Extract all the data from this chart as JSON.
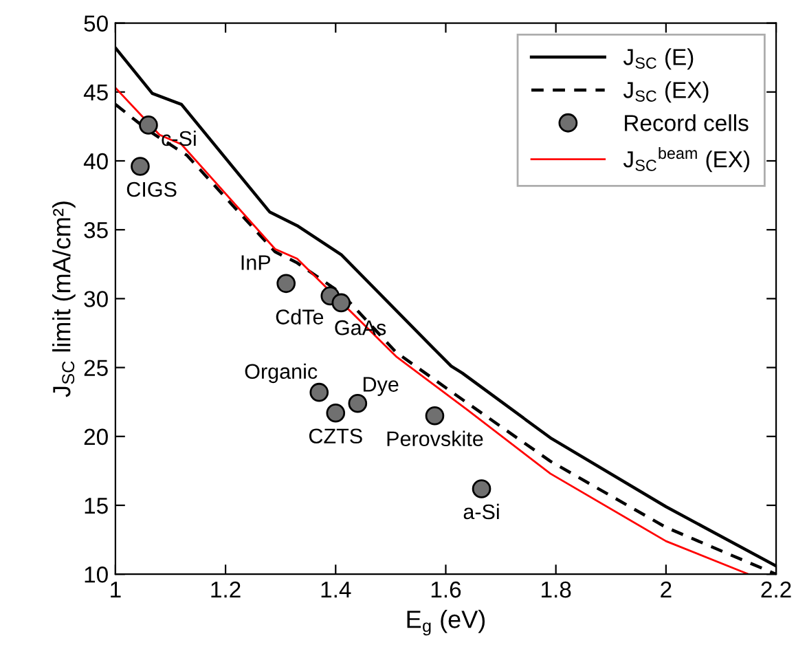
{
  "chart_data": {
    "type": "line",
    "xlabel": "E$_{g}$ (eV)",
    "ylabel": "J$_{SC}$ limit (mA/cm²)",
    "xlim": [
      1,
      2.2
    ],
    "xticks": [
      1,
      1.2,
      1.4,
      1.6,
      1.8,
      2,
      2.2
    ],
    "ylim": [
      10,
      50
    ],
    "yticks": [
      10,
      15,
      20,
      25,
      30,
      35,
      40,
      45,
      50
    ],
    "grid": false,
    "legend": "top right",
    "series": [
      {
        "name": "J$_{SC}$ (E)",
        "color": "#000000",
        "line_style": "solid",
        "x": [
          1.0,
          1.067,
          1.12,
          1.28,
          1.33,
          1.41,
          1.58,
          1.61,
          1.63,
          1.79,
          2.0,
          2.2
        ],
        "values": [
          48.2,
          44.9,
          44.1,
          36.3,
          35.3,
          33.2,
          26.3,
          25.1,
          24.6,
          19.9,
          14.9,
          10.6
        ]
      },
      {
        "name": "J$_{SC}$ (EX)",
        "color": "#000000",
        "line_style": "dashed",
        "x": [
          1.0,
          1.06,
          1.13,
          1.29,
          1.33,
          1.41,
          1.51,
          1.64,
          1.79,
          2.0,
          2.2
        ],
        "values": [
          44.1,
          42.2,
          40.4,
          33.4,
          32.6,
          30.4,
          26.1,
          22.4,
          18.2,
          13.4,
          10.0
        ]
      },
      {
        "name": "Record cells",
        "type": "scatter",
        "color": "#707070",
        "marker": "circle",
        "x": [
          1.06,
          1.045,
          1.31,
          1.39,
          1.41,
          1.37,
          1.4,
          1.44,
          1.58,
          1.665
        ],
        "values": [
          42.6,
          39.6,
          31.1,
          30.2,
          29.7,
          23.2,
          21.7,
          22.4,
          21.5,
          16.2
        ]
      },
      {
        "name": "J$_{SC}$$^{beam}$ (EX)",
        "color": "#ff0000",
        "line_style": "solid",
        "x": [
          1.0,
          1.08,
          1.12,
          1.29,
          1.33,
          1.51,
          1.64,
          1.79,
          2.0,
          2.15
        ],
        "values": [
          45.3,
          41.9,
          41.2,
          33.6,
          32.9,
          25.8,
          21.9,
          17.3,
          12.4,
          10.0
        ]
      }
    ],
    "annotations": [
      {
        "text": "c-Si",
        "x": 1.06,
        "y": 42.6
      },
      {
        "text": "CIGS",
        "x": 1.045,
        "y": 39.6
      },
      {
        "text": "InP",
        "x": 1.31,
        "y": 31.1
      },
      {
        "text": "CdTe",
        "x": 1.39,
        "y": 30.2
      },
      {
        "text": "GaAs",
        "x": 1.41,
        "y": 29.7
      },
      {
        "text": "Organic",
        "x": 1.37,
        "y": 23.2
      },
      {
        "text": "CZTS",
        "x": 1.4,
        "y": 21.7
      },
      {
        "text": "Dye",
        "x": 1.44,
        "y": 22.4
      },
      {
        "text": "Perovskite",
        "x": 1.58,
        "y": 21.5
      },
      {
        "text": "a-Si",
        "x": 1.665,
        "y": 16.2
      }
    ]
  }
}
